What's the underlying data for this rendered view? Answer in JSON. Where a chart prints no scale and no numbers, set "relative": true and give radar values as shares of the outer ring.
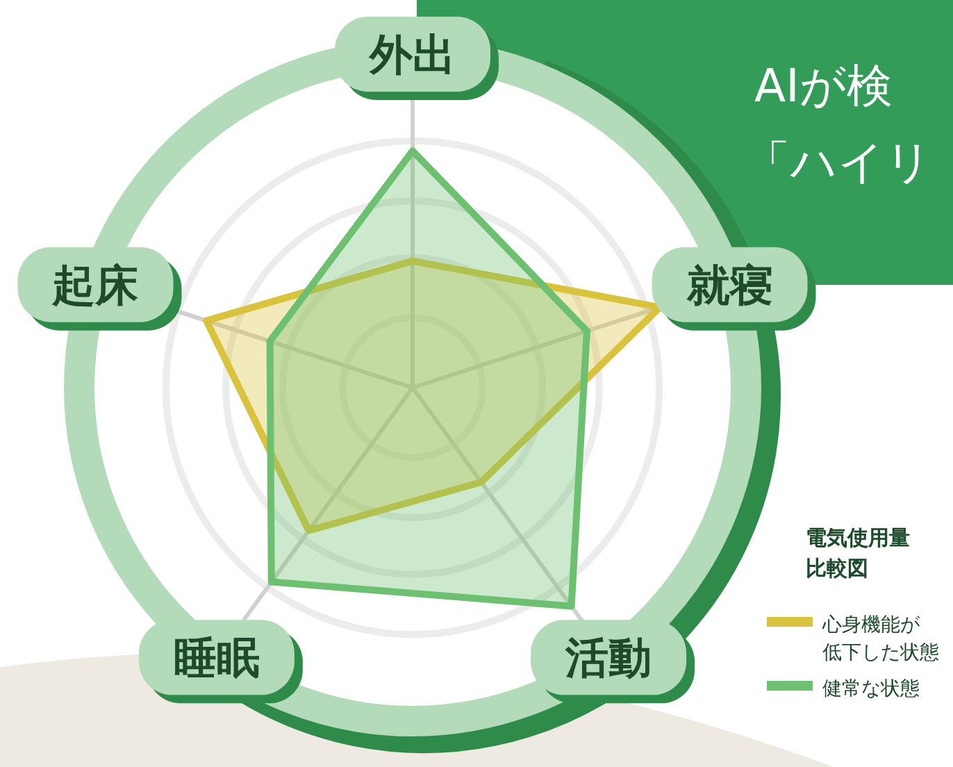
{
  "chart_data": {
    "type": "radar",
    "relative": true,
    "title": "AIが検",
    "subtitle": "「ハイリ",
    "legend_title": "電気使用量比較図",
    "legend": "bottom right",
    "grid": true,
    "categories": [
      "外出",
      "就寝",
      "活動",
      "睡眠",
      "起床"
    ],
    "series": [
      {
        "name": "心身機能が低下した状態",
        "color": "#d9c23c",
        "values": [
          0.38,
          0.78,
          0.35,
          0.53,
          0.65
        ]
      },
      {
        "name": "健常な状態",
        "color": "#6cc070",
        "values": [
          0.71,
          0.55,
          0.81,
          0.72,
          0.45
        ]
      }
    ]
  }
}
